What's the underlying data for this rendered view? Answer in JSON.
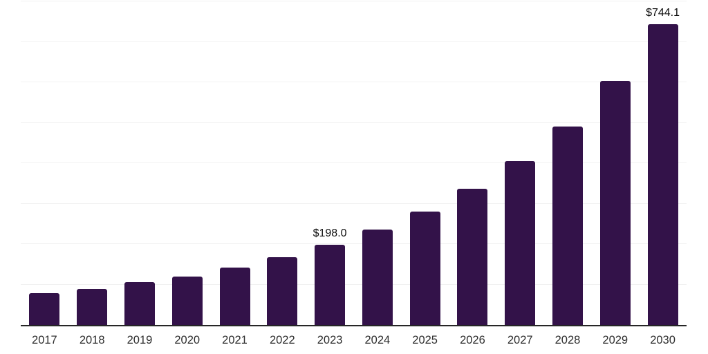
{
  "chart_data": {
    "type": "bar",
    "title": "",
    "xlabel": "",
    "ylabel": "",
    "categories": [
      "2017",
      "2018",
      "2019",
      "2020",
      "2021",
      "2022",
      "2023",
      "2024",
      "2025",
      "2026",
      "2027",
      "2028",
      "2029",
      "2030"
    ],
    "values": [
      78.6,
      89.0,
      106.0,
      119.7,
      141.9,
      167.5,
      198.0,
      235.9,
      280.3,
      336.7,
      405.1,
      490.5,
      603.3,
      744.1
    ],
    "value_labels": [
      "",
      "",
      "",
      "",
      "",
      "",
      "$198.0",
      "",
      "",
      "",
      "",
      "",
      "",
      "$744.1"
    ],
    "ylim": [
      0,
      800
    ],
    "grid": "on",
    "gridline_interval": 100,
    "legend": "none",
    "colors": {
      "bar": "#331249",
      "gridline": "#f1f1f1",
      "axis_line": "#262626",
      "tick_label": "#2e2e2e",
      "value_label": "#0d0d0d",
      "background": "#ffffff"
    }
  }
}
